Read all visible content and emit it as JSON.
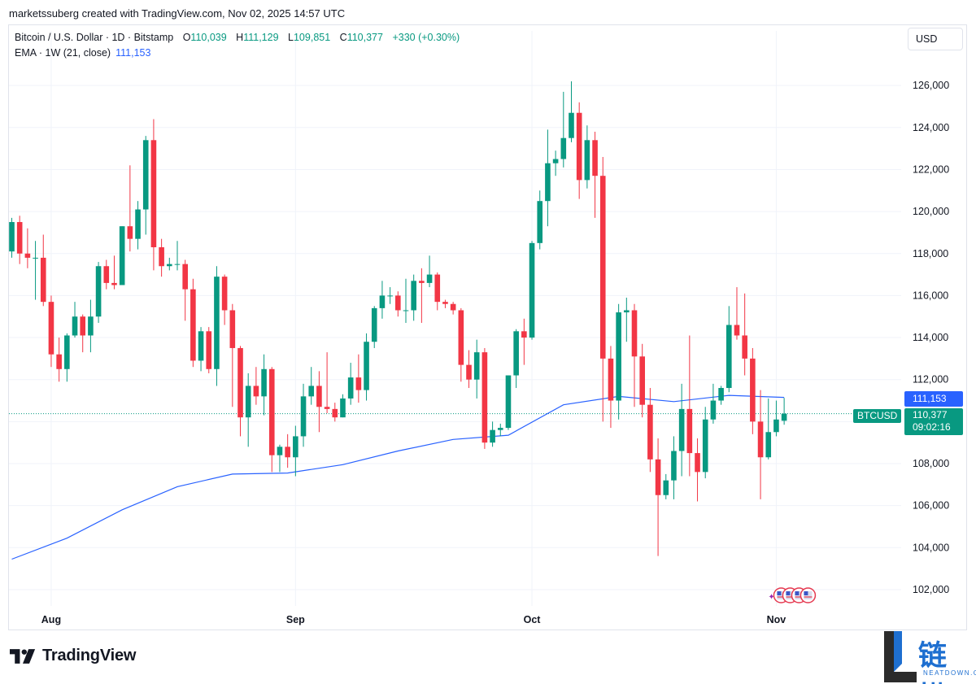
{
  "header": {
    "caption": "marketssuberg created with TradingView.com, Nov 02, 2025 14:57 UTC"
  },
  "legend": {
    "symbol": "Bitcoin / U.S. Dollar · 1D · Bitstamp",
    "open_label": "O",
    "open": "110,039",
    "high_label": "H",
    "high": "111,129",
    "low_label": "L",
    "low": "109,851",
    "close_label": "C",
    "close": "110,377",
    "change": "+330 (+0.30%)",
    "ema_label": "EMA · 1W (21, close)",
    "ema_value": "111,153"
  },
  "currency_button": {
    "label": "USD"
  },
  "price_badges": {
    "ema": "111,153",
    "price": "110,377",
    "countdown": "09:02:16",
    "symbol": "BTCUSD"
  },
  "branding": {
    "tradingview": "TradingView",
    "watermark_cn": "链懂",
    "watermark_en": "NEATDOWN.COM"
  },
  "colors": {
    "up": "#089981",
    "down": "#f23645",
    "ema": "#2962ff",
    "grid": "#f0f3fa",
    "text": "#131722"
  },
  "chart_data": {
    "type": "candlestick",
    "interval": "1D",
    "grid": true,
    "ylim": [
      101000,
      127000
    ],
    "y_ticks": [
      102000,
      104000,
      106000,
      108000,
      110000,
      112000,
      114000,
      116000,
      118000,
      120000,
      122000,
      124000,
      126000
    ],
    "y_tick_labels": [
      "102,000",
      "104,000",
      "106,000",
      "108,000",
      "110,000",
      "112,000",
      "114,000",
      "116,000",
      "118,000",
      "120,000",
      "122,000",
      "124,000",
      "126,000"
    ],
    "x_ticks": [
      {
        "label": "Aug",
        "date": "2025-08-01"
      },
      {
        "label": "Sep",
        "date": "2025-09-01"
      },
      {
        "label": "Oct",
        "date": "2025-10-01"
      },
      {
        "label": "Nov",
        "date": "2025-11-01"
      }
    ],
    "candles": [
      {
        "date": "2025-07-27",
        "o": 118100,
        "h": 119700,
        "l": 117800,
        "c": 119500
      },
      {
        "date": "2025-07-28",
        "o": 119500,
        "h": 119800,
        "l": 117500,
        "c": 118000
      },
      {
        "date": "2025-07-29",
        "o": 118000,
        "h": 119200,
        "l": 117300,
        "c": 117800
      },
      {
        "date": "2025-07-30",
        "o": 117800,
        "h": 118600,
        "l": 115800,
        "c": 117800
      },
      {
        "date": "2025-07-31",
        "o": 117800,
        "h": 118900,
        "l": 115500,
        "c": 115700
      },
      {
        "date": "2025-08-01",
        "o": 115700,
        "h": 116000,
        "l": 112600,
        "c": 113200
      },
      {
        "date": "2025-08-02",
        "o": 113200,
        "h": 114000,
        "l": 111900,
        "c": 112500
      },
      {
        "date": "2025-08-03",
        "o": 112500,
        "h": 114200,
        "l": 111900,
        "c": 114100
      },
      {
        "date": "2025-08-04",
        "o": 114100,
        "h": 115700,
        "l": 114000,
        "c": 115000
      },
      {
        "date": "2025-08-05",
        "o": 115000,
        "h": 115100,
        "l": 113300,
        "c": 114100
      },
      {
        "date": "2025-08-06",
        "o": 114100,
        "h": 115800,
        "l": 113300,
        "c": 115000
      },
      {
        "date": "2025-08-07",
        "o": 115000,
        "h": 117600,
        "l": 114700,
        "c": 117400
      },
      {
        "date": "2025-08-08",
        "o": 117400,
        "h": 117700,
        "l": 116300,
        "c": 116600
      },
      {
        "date": "2025-08-09",
        "o": 116600,
        "h": 117900,
        "l": 116300,
        "c": 116500
      },
      {
        "date": "2025-08-10",
        "o": 116500,
        "h": 119300,
        "l": 116500,
        "c": 119300
      },
      {
        "date": "2025-08-11",
        "o": 119300,
        "h": 122200,
        "l": 118100,
        "c": 118700
      },
      {
        "date": "2025-08-12",
        "o": 118700,
        "h": 120500,
        "l": 118200,
        "c": 120100
      },
      {
        "date": "2025-08-13",
        "o": 120100,
        "h": 123600,
        "l": 118900,
        "c": 123400
      },
      {
        "date": "2025-08-14",
        "o": 123400,
        "h": 124400,
        "l": 117200,
        "c": 118300
      },
      {
        "date": "2025-08-15",
        "o": 118300,
        "h": 118700,
        "l": 116900,
        "c": 117400
      },
      {
        "date": "2025-08-16",
        "o": 117400,
        "h": 117800,
        "l": 117200,
        "c": 117500
      },
      {
        "date": "2025-08-17",
        "o": 117500,
        "h": 118600,
        "l": 117200,
        "c": 117500
      },
      {
        "date": "2025-08-18",
        "o": 117500,
        "h": 117700,
        "l": 114800,
        "c": 116300
      },
      {
        "date": "2025-08-19",
        "o": 116300,
        "h": 116800,
        "l": 112600,
        "c": 112900
      },
      {
        "date": "2025-08-20",
        "o": 112900,
        "h": 114500,
        "l": 112400,
        "c": 114300
      },
      {
        "date": "2025-08-21",
        "o": 114300,
        "h": 114500,
        "l": 112300,
        "c": 112500
      },
      {
        "date": "2025-08-22",
        "o": 112500,
        "h": 117400,
        "l": 111700,
        "c": 116900
      },
      {
        "date": "2025-08-23",
        "o": 116900,
        "h": 117000,
        "l": 114600,
        "c": 115300
      },
      {
        "date": "2025-08-24",
        "o": 115300,
        "h": 115600,
        "l": 110700,
        "c": 113500
      },
      {
        "date": "2025-08-25",
        "o": 113500,
        "h": 113600,
        "l": 109300,
        "c": 110200
      },
      {
        "date": "2025-08-26",
        "o": 110200,
        "h": 112300,
        "l": 108800,
        "c": 111700
      },
      {
        "date": "2025-08-27",
        "o": 111700,
        "h": 112600,
        "l": 110800,
        "c": 111200
      },
      {
        "date": "2025-08-28",
        "o": 111200,
        "h": 113200,
        "l": 110300,
        "c": 112500
      },
      {
        "date": "2025-08-29",
        "o": 112500,
        "h": 112600,
        "l": 107600,
        "c": 108400
      },
      {
        "date": "2025-08-30",
        "o": 108400,
        "h": 108900,
        "l": 107600,
        "c": 108800
      },
      {
        "date": "2025-08-31",
        "o": 108800,
        "h": 109400,
        "l": 107800,
        "c": 108300
      },
      {
        "date": "2025-09-01",
        "o": 108300,
        "h": 109800,
        "l": 107400,
        "c": 109300
      },
      {
        "date": "2025-09-02",
        "o": 109300,
        "h": 111800,
        "l": 108800,
        "c": 111200
      },
      {
        "date": "2025-09-03",
        "o": 111200,
        "h": 112600,
        "l": 110800,
        "c": 111700
      },
      {
        "date": "2025-09-04",
        "o": 111700,
        "h": 112400,
        "l": 109500,
        "c": 110700
      },
      {
        "date": "2025-09-05",
        "o": 110700,
        "h": 113300,
        "l": 110400,
        "c": 110600
      },
      {
        "date": "2025-09-06",
        "o": 110600,
        "h": 110900,
        "l": 110000,
        "c": 110200
      },
      {
        "date": "2025-09-07",
        "o": 110200,
        "h": 111300,
        "l": 110200,
        "c": 111100
      },
      {
        "date": "2025-09-08",
        "o": 111100,
        "h": 112800,
        "l": 110800,
        "c": 112100
      },
      {
        "date": "2025-09-09",
        "o": 112100,
        "h": 113200,
        "l": 110900,
        "c": 111500
      },
      {
        "date": "2025-09-10",
        "o": 111500,
        "h": 114200,
        "l": 111000,
        "c": 113800
      },
      {
        "date": "2025-09-11",
        "o": 113800,
        "h": 115500,
        "l": 113500,
        "c": 115400
      },
      {
        "date": "2025-09-12",
        "o": 115400,
        "h": 116700,
        "l": 114900,
        "c": 116000
      },
      {
        "date": "2025-09-13",
        "o": 116000,
        "h": 116400,
        "l": 115600,
        "c": 116000
      },
      {
        "date": "2025-09-14",
        "o": 116000,
        "h": 116200,
        "l": 115000,
        "c": 115300
      },
      {
        "date": "2025-09-15",
        "o": 115300,
        "h": 116800,
        "l": 114700,
        "c": 115300
      },
      {
        "date": "2025-09-16",
        "o": 115300,
        "h": 117000,
        "l": 114800,
        "c": 116700
      },
      {
        "date": "2025-09-17",
        "o": 116700,
        "h": 117300,
        "l": 114700,
        "c": 116600
      },
      {
        "date": "2025-09-18",
        "o": 116600,
        "h": 117900,
        "l": 116400,
        "c": 117000
      },
      {
        "date": "2025-09-19",
        "o": 117000,
        "h": 117100,
        "l": 115300,
        "c": 115700
      },
      {
        "date": "2025-09-20",
        "o": 115700,
        "h": 115800,
        "l": 115400,
        "c": 115600
      },
      {
        "date": "2025-09-21",
        "o": 115600,
        "h": 115700,
        "l": 115100,
        "c": 115300
      },
      {
        "date": "2025-09-22",
        "o": 115300,
        "h": 115400,
        "l": 111900,
        "c": 112700
      },
      {
        "date": "2025-09-23",
        "o": 112700,
        "h": 113400,
        "l": 111600,
        "c": 112000
      },
      {
        "date": "2025-09-24",
        "o": 112000,
        "h": 113900,
        "l": 111100,
        "c": 113300
      },
      {
        "date": "2025-09-25",
        "o": 113300,
        "h": 113500,
        "l": 108700,
        "c": 109000
      },
      {
        "date": "2025-09-26",
        "o": 109000,
        "h": 110000,
        "l": 108800,
        "c": 109600
      },
      {
        "date": "2025-09-27",
        "o": 109600,
        "h": 109900,
        "l": 109300,
        "c": 109700
      },
      {
        "date": "2025-09-28",
        "o": 109700,
        "h": 112200,
        "l": 109600,
        "c": 112200
      },
      {
        "date": "2025-09-29",
        "o": 112200,
        "h": 114400,
        "l": 111600,
        "c": 114300
      },
      {
        "date": "2025-09-30",
        "o": 114300,
        "h": 114900,
        "l": 112700,
        "c": 114000
      },
      {
        "date": "2025-10-01",
        "o": 114000,
        "h": 118600,
        "l": 113900,
        "c": 118500
      },
      {
        "date": "2025-10-02",
        "o": 118500,
        "h": 121000,
        "l": 118200,
        "c": 120500
      },
      {
        "date": "2025-10-03",
        "o": 120500,
        "h": 123900,
        "l": 119300,
        "c": 122300
      },
      {
        "date": "2025-10-04",
        "o": 122300,
        "h": 122900,
        "l": 121700,
        "c": 122500
      },
      {
        "date": "2025-10-05",
        "o": 122500,
        "h": 125700,
        "l": 122100,
        "c": 123500
      },
      {
        "date": "2025-10-06",
        "o": 123500,
        "h": 126200,
        "l": 123300,
        "c": 124700
      },
      {
        "date": "2025-10-07",
        "o": 124700,
        "h": 125200,
        "l": 120600,
        "c": 121500
      },
      {
        "date": "2025-10-08",
        "o": 121500,
        "h": 124100,
        "l": 121100,
        "c": 123400
      },
      {
        "date": "2025-10-09",
        "o": 123400,
        "h": 123800,
        "l": 119700,
        "c": 121700
      },
      {
        "date": "2025-10-10",
        "o": 121700,
        "h": 122600,
        "l": 110000,
        "c": 113000
      },
      {
        "date": "2025-10-11",
        "o": 113000,
        "h": 113600,
        "l": 109700,
        "c": 111000
      },
      {
        "date": "2025-10-12",
        "o": 111000,
        "h": 115600,
        "l": 110100,
        "c": 115200
      },
      {
        "date": "2025-10-13",
        "o": 115200,
        "h": 115900,
        "l": 113800,
        "c": 115300
      },
      {
        "date": "2025-10-14",
        "o": 115300,
        "h": 115600,
        "l": 110700,
        "c": 113100
      },
      {
        "date": "2025-10-15",
        "o": 113100,
        "h": 113700,
        "l": 110200,
        "c": 110800
      },
      {
        "date": "2025-10-16",
        "o": 110800,
        "h": 111600,
        "l": 107600,
        "c": 108200
      },
      {
        "date": "2025-10-17",
        "o": 108200,
        "h": 109200,
        "l": 103600,
        "c": 106500
      },
      {
        "date": "2025-10-18",
        "o": 106500,
        "h": 107500,
        "l": 106300,
        "c": 107200
      },
      {
        "date": "2025-10-19",
        "o": 107200,
        "h": 109300,
        "l": 106300,
        "c": 108600
      },
      {
        "date": "2025-10-20",
        "o": 108600,
        "h": 111800,
        "l": 107400,
        "c": 110600
      },
      {
        "date": "2025-10-21",
        "o": 110600,
        "h": 114100,
        "l": 107400,
        "c": 108500
      },
      {
        "date": "2025-10-22",
        "o": 108500,
        "h": 109200,
        "l": 106200,
        "c": 107600
      },
      {
        "date": "2025-10-23",
        "o": 107600,
        "h": 110700,
        "l": 107300,
        "c": 110100
      },
      {
        "date": "2025-10-24",
        "o": 110100,
        "h": 111800,
        "l": 109900,
        "c": 111000
      },
      {
        "date": "2025-10-25",
        "o": 111000,
        "h": 111700,
        "l": 110800,
        "c": 111600
      },
      {
        "date": "2025-10-26",
        "o": 111600,
        "h": 115500,
        "l": 111400,
        "c": 114600
      },
      {
        "date": "2025-10-27",
        "o": 114600,
        "h": 116400,
        "l": 113900,
        "c": 114100
      },
      {
        "date": "2025-10-28",
        "o": 114100,
        "h": 116100,
        "l": 112200,
        "c": 113000
      },
      {
        "date": "2025-10-29",
        "o": 113000,
        "h": 113500,
        "l": 109400,
        "c": 110000
      },
      {
        "date": "2025-10-30",
        "o": 110000,
        "h": 111500,
        "l": 106300,
        "c": 108300
      },
      {
        "date": "2025-10-31",
        "o": 108300,
        "h": 111100,
        "l": 108200,
        "c": 109500
      },
      {
        "date": "2025-11-01",
        "o": 109500,
        "h": 111000,
        "l": 109300,
        "c": 110100
      },
      {
        "date": "2025-11-02",
        "o": 110039,
        "h": 111129,
        "l": 109851,
        "c": 110377
      }
    ],
    "ema_series": {
      "name": "EMA · 1W (21, close)",
      "points": [
        {
          "date": "2025-07-27",
          "value": 103450
        },
        {
          "date": "2025-08-03",
          "value": 104450
        },
        {
          "date": "2025-08-10",
          "value": 105800
        },
        {
          "date": "2025-08-17",
          "value": 106900
        },
        {
          "date": "2025-08-24",
          "value": 107500
        },
        {
          "date": "2025-08-31",
          "value": 107550
        },
        {
          "date": "2025-09-07",
          "value": 107950
        },
        {
          "date": "2025-09-14",
          "value": 108600
        },
        {
          "date": "2025-09-21",
          "value": 109150
        },
        {
          "date": "2025-09-28",
          "value": 109350
        },
        {
          "date": "2025-10-05",
          "value": 110800
        },
        {
          "date": "2025-10-12",
          "value": 111200
        },
        {
          "date": "2025-10-19",
          "value": 110950
        },
        {
          "date": "2025-10-26",
          "value": 111250
        },
        {
          "date": "2025-11-02",
          "value": 111153
        }
      ]
    },
    "current_price": 110377,
    "event_markers": {
      "date": "2025-11-01",
      "count": 4
    }
  }
}
